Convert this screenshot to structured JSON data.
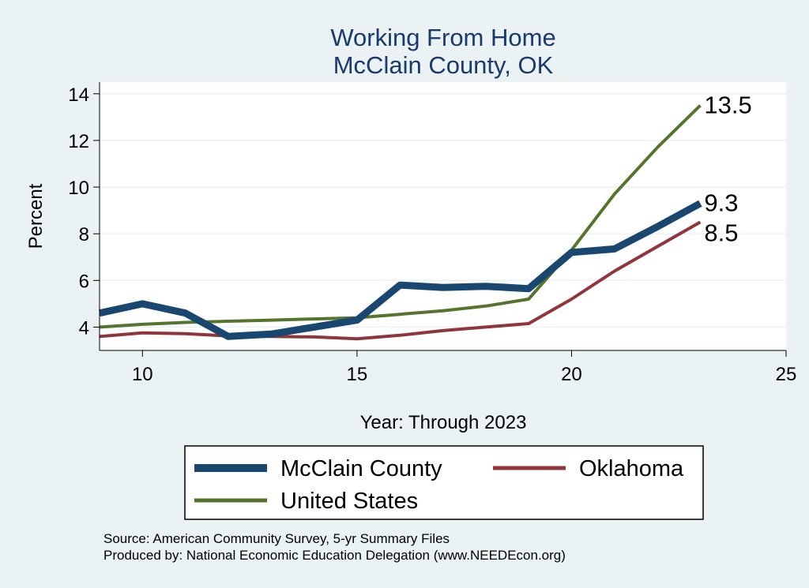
{
  "chart_data": {
    "type": "line",
    "title": "Working From Home",
    "subtitle": "McClain County, OK",
    "xlabel": "Year: Through 2023",
    "ylabel": "Percent",
    "xlim": [
      9,
      25
    ],
    "ylim": [
      3,
      14.5
    ],
    "xticks": [
      10,
      15,
      20,
      25
    ],
    "yticks": [
      4,
      6,
      8,
      10,
      12,
      14
    ],
    "grid": true,
    "legend_position": "bottom",
    "x": [
      9,
      10,
      11,
      12,
      13,
      14,
      15,
      16,
      17,
      18,
      19,
      20,
      21,
      22,
      23
    ],
    "series": [
      {
        "name": "McClain County",
        "color": "#1a476f",
        "values": [
          4.6,
          5.0,
          4.6,
          3.6,
          3.7,
          4.0,
          4.3,
          5.8,
          5.7,
          5.75,
          5.65,
          7.2,
          7.35,
          8.3,
          9.3
        ],
        "end_label": "9.3"
      },
      {
        "name": "Oklahoma",
        "color": "#90353b",
        "values": [
          3.6,
          3.75,
          3.72,
          3.62,
          3.6,
          3.58,
          3.5,
          3.65,
          3.85,
          4.0,
          4.15,
          5.2,
          6.4,
          7.45,
          8.5
        ],
        "end_label": "8.5"
      },
      {
        "name": "United States",
        "color": "#55752f",
        "values": [
          4.0,
          4.12,
          4.2,
          4.25,
          4.3,
          4.35,
          4.4,
          4.55,
          4.7,
          4.9,
          5.2,
          7.3,
          9.7,
          11.7,
          13.5
        ],
        "end_label": "13.5"
      }
    ]
  },
  "footer": {
    "source": "Source: American Community Survey, 5-yr Summary Files",
    "produced_by": "Produced by: National Economic Education Delegation (www.NEEDEcon.org)"
  }
}
